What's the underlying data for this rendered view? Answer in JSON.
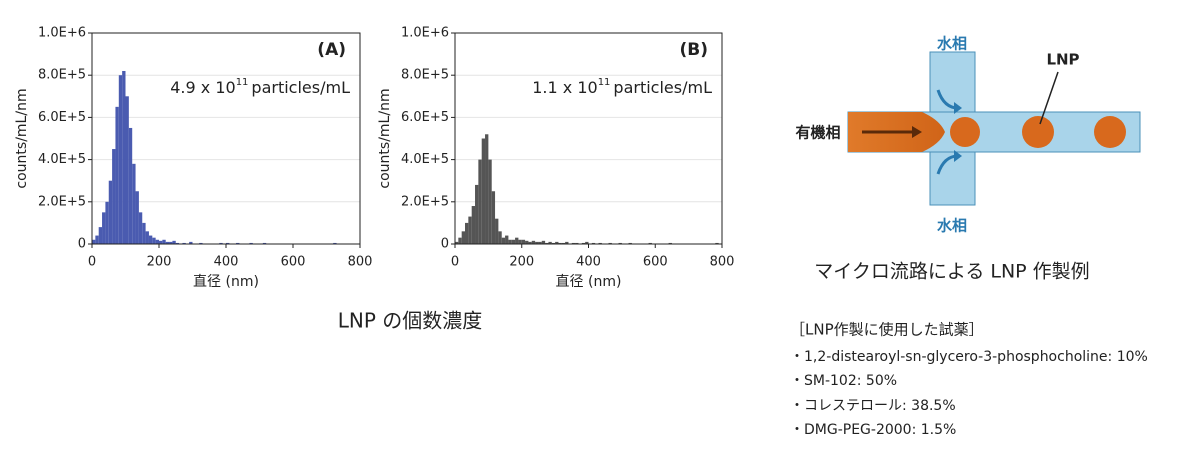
{
  "chart_data": [
    {
      "type": "histogram",
      "label": "(A)",
      "annotation": {
        "base": "4.9 x 10",
        "exponent": "11",
        "unit": "particles/mL"
      },
      "xlabel": "直径 (nm)",
      "ylabel": "counts/mL/nm",
      "color": "#4a5bb0",
      "grid": true,
      "xlim": [
        0,
        800
      ],
      "xticks": [
        0,
        200,
        400,
        600,
        800
      ],
      "ylim": [
        0,
        1000000
      ],
      "yticks": [
        0,
        {
          "value": 200000,
          "label": "2.0E+5"
        },
        {
          "value": 400000,
          "label": "4.0E+5"
        },
        {
          "value": 600000,
          "label": "6.0E+5"
        },
        {
          "value": 800000,
          "label": "8.0E+5"
        },
        {
          "value": 1000000,
          "label": "1.0E+6"
        }
      ],
      "bins": [
        0,
        10,
        20,
        30,
        40,
        50,
        60,
        70,
        80,
        90,
        100,
        110,
        120,
        130,
        140,
        150,
        160,
        170,
        180,
        190,
        200,
        210,
        220,
        230,
        240,
        250,
        260,
        270,
        280,
        290,
        300,
        310,
        320,
        330,
        340,
        350,
        360,
        370,
        380,
        390,
        400,
        410,
        420,
        430,
        440,
        450,
        460,
        470,
        480,
        490,
        500,
        510,
        520,
        530,
        540,
        550,
        560,
        570,
        580,
        590,
        600,
        610,
        620,
        630,
        640,
        650,
        660,
        670,
        680,
        690,
        700,
        710,
        720,
        730,
        740,
        750,
        760,
        770,
        780,
        790,
        800
      ],
      "values": [
        20000,
        40000,
        80000,
        150000,
        200000,
        300000,
        450000,
        650000,
        800000,
        820000,
        700000,
        550000,
        380000,
        250000,
        150000,
        100000,
        60000,
        40000,
        30000,
        20000,
        15000,
        20000,
        10000,
        10000,
        15000,
        5000,
        0,
        5000,
        0,
        10000,
        0,
        0,
        5000,
        0,
        0,
        0,
        0,
        0,
        5000,
        0,
        5000,
        0,
        0,
        5000,
        0,
        0,
        0,
        5000,
        0,
        0,
        0,
        5000,
        0,
        0,
        0,
        0,
        0,
        0,
        0,
        0,
        0,
        0,
        0,
        0,
        0,
        0,
        0,
        0,
        0,
        0,
        0,
        0,
        5000,
        0,
        0,
        0,
        0,
        0,
        0,
        0
      ]
    },
    {
      "type": "histogram",
      "label": "(B)",
      "annotation": {
        "base": "1.1 x 10",
        "exponent": "11",
        "unit": "particles/mL"
      },
      "xlabel": "直径 (nm)",
      "ylabel": "counts/mL/nm",
      "color": "#555555",
      "grid": true,
      "xlim": [
        0,
        800
      ],
      "xticks": [
        0,
        200,
        400,
        600,
        800
      ],
      "ylim": [
        0,
        1000000
      ],
      "yticks": [
        0,
        {
          "value": 200000,
          "label": "2.0E+5"
        },
        {
          "value": 400000,
          "label": "4.0E+5"
        },
        {
          "value": 600000,
          "label": "6.0E+5"
        },
        {
          "value": 800000,
          "label": "8.0E+5"
        },
        {
          "value": 1000000,
          "label": "1.0E+6"
        }
      ],
      "bins": [
        0,
        10,
        20,
        30,
        40,
        50,
        60,
        70,
        80,
        90,
        100,
        110,
        120,
        130,
        140,
        150,
        160,
        170,
        180,
        190,
        200,
        210,
        220,
        230,
        240,
        250,
        260,
        270,
        280,
        290,
        300,
        310,
        320,
        330,
        340,
        350,
        360,
        370,
        380,
        390,
        400,
        410,
        420,
        430,
        440,
        450,
        460,
        470,
        480,
        490,
        500,
        510,
        520,
        530,
        540,
        550,
        560,
        570,
        580,
        590,
        600,
        610,
        620,
        630,
        640,
        650,
        660,
        670,
        680,
        690,
        700,
        710,
        720,
        730,
        740,
        750,
        760,
        770,
        780,
        790,
        800
      ],
      "values": [
        10000,
        30000,
        60000,
        100000,
        130000,
        180000,
        280000,
        400000,
        500000,
        520000,
        400000,
        250000,
        120000,
        60000,
        30000,
        40000,
        20000,
        20000,
        30000,
        20000,
        20000,
        15000,
        10000,
        15000,
        10000,
        10000,
        15000,
        5000,
        10000,
        5000,
        10000,
        5000,
        5000,
        10000,
        0,
        5000,
        5000,
        0,
        5000,
        10000,
        0,
        5000,
        0,
        5000,
        0,
        0,
        5000,
        0,
        0,
        5000,
        0,
        0,
        5000,
        0,
        0,
        0,
        0,
        0,
        5000,
        0,
        0,
        0,
        0,
        0,
        5000,
        0,
        0,
        0,
        0,
        0,
        0,
        0,
        0,
        0,
        0,
        0,
        0,
        0,
        5000,
        0
      ]
    }
  ],
  "caption": "LNP の個数濃度",
  "diagram": {
    "aqueous_top": "水相",
    "aqueous_bottom": "水相",
    "organic": "有機相",
    "lnp": "LNP",
    "caption": "マイクロ流路による LNP 作製例"
  },
  "reagents": {
    "title": "［LNP作製に使用した試薬］",
    "items": [
      "・1,2-distearoyl-sn-glycero-3-phosphocholine: 10%",
      "・SM-102: 50%",
      "・コレステロール: 38.5%",
      "・DMG-PEG-2000: 1.5%"
    ]
  }
}
